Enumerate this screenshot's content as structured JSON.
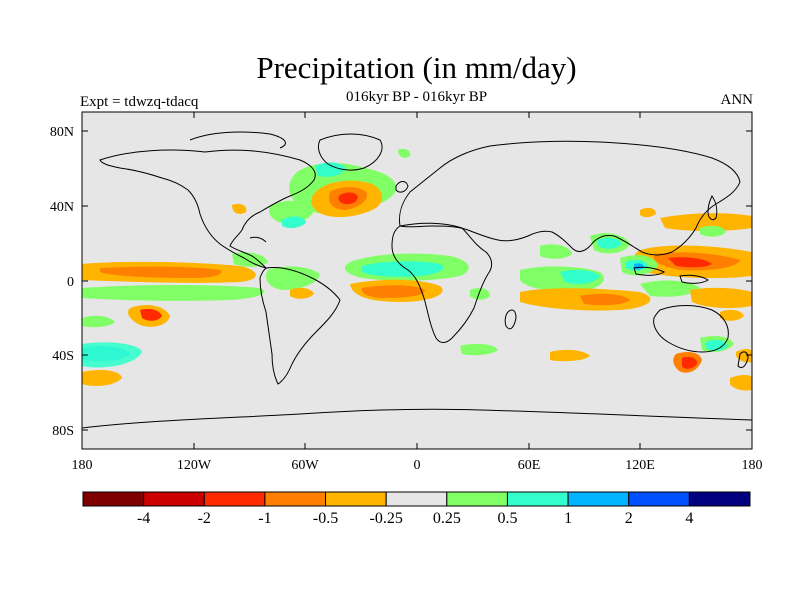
{
  "title": "Precipitation (in mm/day)",
  "subtitle": "016kyr BP - 016kyr BP",
  "left_label": "Expt = tdwzq-tdacq",
  "right_label": "ANN",
  "lat_ticks": [
    "80N",
    "40N",
    "0",
    "40S",
    "80S"
  ],
  "lon_ticks": [
    "180",
    "120W",
    "60W",
    "0",
    "60E",
    "120E",
    "180"
  ],
  "colorbar": {
    "colors": [
      "#7f0000",
      "#cc0000",
      "#ff2a00",
      "#ff7f00",
      "#ffb400",
      "#e6e6e6",
      "#80ff66",
      "#33ffcc",
      "#00b4ff",
      "#0050ff",
      "#000080"
    ],
    "labels": [
      "-4",
      "-2",
      "-1",
      "-0.5",
      "-0.25",
      "0.25",
      "0.5",
      "1",
      "2",
      "4"
    ]
  },
  "map": {
    "background_color": "#e6e6e6",
    "coastline_color": "#000000"
  }
}
